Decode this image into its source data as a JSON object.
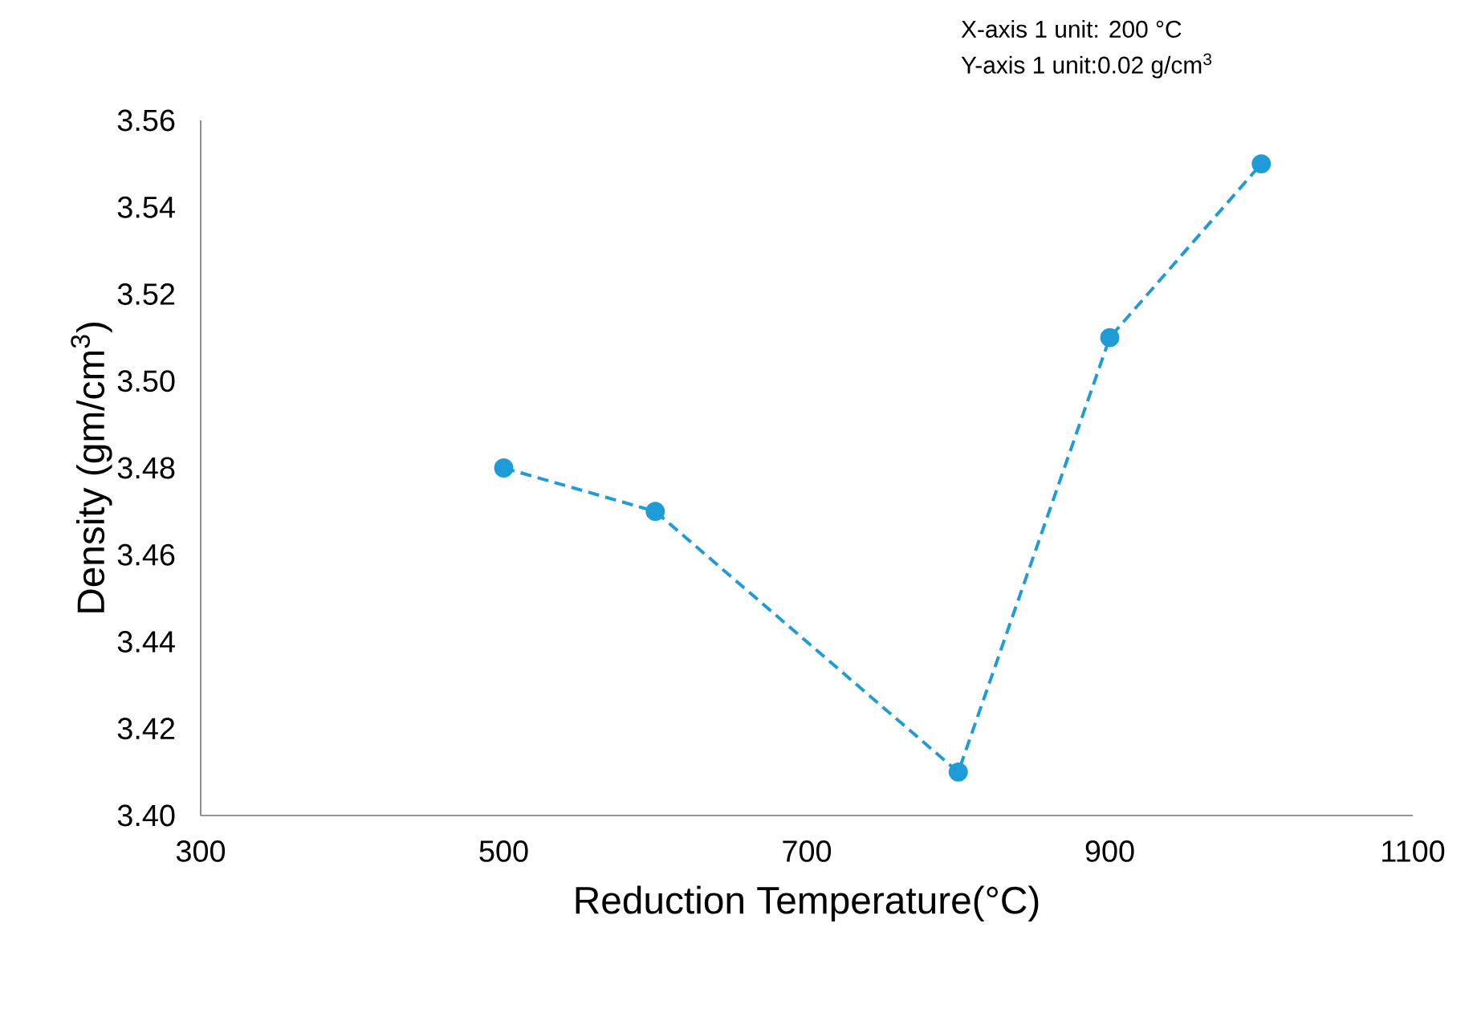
{
  "chart_data": {
    "type": "line",
    "xlabel": "Reduction Temperature(°C)",
    "ylabel": "Density (gm/cm$^{3}$)",
    "annotations": [
      "X-axis 1 unit: 200 °C",
      "Y-axis 1 unit:0.02 g/cm$^{3}$"
    ],
    "x": [
      500,
      600,
      800,
      900,
      1000
    ],
    "series": [
      {
        "color": "#1f9bd7",
        "values": [
          3.48,
          3.47,
          3.41,
          3.51,
          3.55
        ]
      }
    ],
    "xlim": [
      300,
      1100
    ],
    "xticks": [
      300,
      500,
      700,
      900,
      1100
    ],
    "ylim": [
      3.4,
      3.56
    ],
    "yticks": [
      {
        "value": 3.4,
        "label": "3.40"
      },
      {
        "value": 3.42,
        "label": "3.42"
      },
      {
        "value": 3.44,
        "label": "3.44"
      },
      {
        "value": 3.46,
        "label": "3.46"
      },
      {
        "value": 3.48,
        "label": "3.48"
      },
      {
        "value": 3.5,
        "label": "3.50"
      },
      {
        "value": 3.52,
        "label": "3.52"
      },
      {
        "value": 3.54,
        "label": "3.54"
      },
      {
        "value": 3.56,
        "label": "3.56"
      }
    ],
    "grid": false,
    "marker": "circle",
    "line_style": "dashed"
  }
}
